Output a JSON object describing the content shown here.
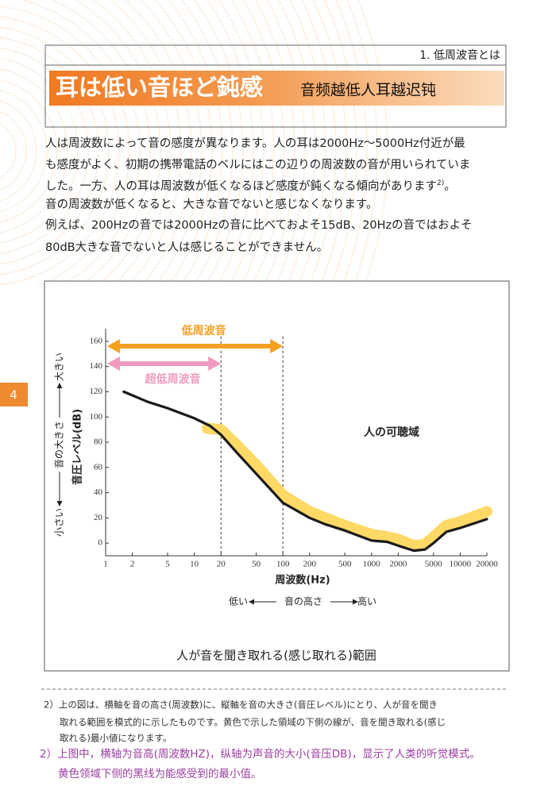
{
  "header": {
    "section": "1. 低周波音とは",
    "title": "耳は低い音ほど鈍感",
    "subtitle": "音频越低人耳越迟钝"
  },
  "page_number": "4",
  "body": {
    "lines": [
      "人は周波数によって音の感度が異なります。人の耳は2000Hz～5000Hz付近が最",
      "も感度がよく、初期の携帯電話のベルにはこの辺りの周波数の音が用いられていま",
      [
        "した。一方、人の耳は周波数が低くなるほど感度が鈍くなる傾向があります",
        "2)",
        "。"
      ],
      "音の周波数が低くなると、大きな音でないと感じなくなります。",
      "例えば、200Hzの音では2000Hzの音に比べておよそ15dB、20Hzの音ではおよそ",
      "80dB大きな音でないと人は感じることができません。"
    ]
  },
  "chart_data": {
    "type": "line",
    "caption": "人が音を聞き取れる(感じ取れる)範囲",
    "x_label": "周波数(Hz)",
    "x_direction": {
      "low": "低い",
      "middle": "音の高さ",
      "high": "高い"
    },
    "y_label": "音圧レベル(dB)",
    "y_direction": {
      "low": "小さい",
      "middle": "音の大きさ",
      "high": "大きい"
    },
    "region_label": "人の可聴域",
    "bands": [
      {
        "name": "低周波音",
        "color": "#f5a020"
      },
      {
        "name": "超低周波音",
        "color": "#f09ac0"
      }
    ],
    "log_x": true,
    "xlim": [
      1,
      20000
    ],
    "xticks": [
      1,
      2,
      5,
      10,
      20,
      50,
      100,
      200,
      500,
      1000,
      2000,
      5000,
      10000,
      20000
    ],
    "ylim": [
      -10,
      170
    ],
    "yticks": [
      0,
      20,
      40,
      60,
      80,
      100,
      120,
      140,
      160
    ],
    "series": [
      {
        "color": "#ffd966",
        "x": [
          14,
          20,
          30,
          50,
          100,
          200,
          300,
          500,
          1000,
          1500,
          2000,
          3000,
          4000,
          5000,
          7000,
          10000,
          20000
        ],
        "values": [
          91,
          90,
          78,
          62,
          38,
          25,
          20,
          14,
          7,
          5,
          3,
          -2,
          -1,
          5,
          14,
          17,
          25
        ]
      },
      {
        "color": "#1a1a1a",
        "x": [
          1.6,
          3,
          5,
          10,
          15,
          20,
          30,
          50,
          100,
          200,
          300,
          500,
          1000,
          1500,
          2000,
          3000,
          4000,
          5000,
          7000,
          10000,
          20000
        ],
        "values": [
          120,
          112,
          107,
          99,
          93,
          86,
          72,
          55,
          32,
          20,
          15,
          10,
          2,
          1,
          -2,
          -6,
          -5,
          0,
          9,
          12,
          19
        ]
      }
    ]
  },
  "footnote": {
    "ja": [
      "2）上の図は、横軸を音の高さ(周波数)に、縦軸を音の大きさ(音圧レベル)にとり、人が音を聞き",
      "取れる範囲を模式的に示したものです。黄色で示した領域の下側の線が、音を聞き取れる(感じ",
      "取れる)最小値になります。"
    ],
    "zh": [
      "2）上图中，横轴为音高(周波数HZ)，纵轴为声音的大小(音压DB)，显示了人类的听觉模式。",
      "黄色领域下侧的黑线为能感受到的最小值。"
    ]
  }
}
